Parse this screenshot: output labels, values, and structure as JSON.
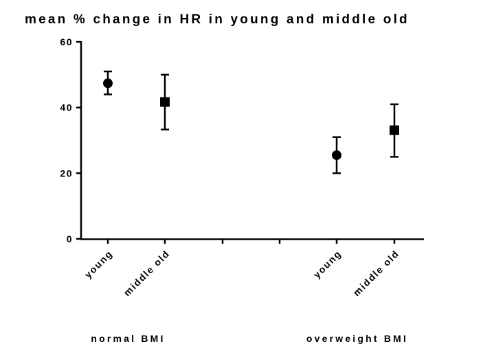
{
  "chart_data": {
    "type": "scatter",
    "title": "mean % change in HR in young and middle old",
    "xlabel": "",
    "ylabel": "",
    "ylim": [
      0,
      60
    ],
    "yticks": [
      0,
      20,
      40,
      60
    ],
    "grid": false,
    "categories": [
      "young",
      "middle old",
      "",
      "",
      "young",
      "middle old"
    ],
    "groups": [
      {
        "label": "normal BMI",
        "categories": [
          "young",
          "middle old"
        ]
      },
      {
        "label": "overweight BMI",
        "categories": [
          "young",
          "middle old"
        ]
      }
    ],
    "points": [
      {
        "group": "normal BMI",
        "category": "young",
        "marker": "circle",
        "mean": 47.4,
        "low": 44.0,
        "high": 51.0
      },
      {
        "group": "normal BMI",
        "category": "middle old",
        "marker": "square",
        "mean": 41.7,
        "low": 33.3,
        "high": 50.0
      },
      {
        "group": "overweight BMI",
        "category": "young",
        "marker": "circle",
        "mean": 25.5,
        "low": 20.0,
        "high": 31.0
      },
      {
        "group": "overweight BMI",
        "category": "middle old",
        "marker": "square",
        "mean": 33.1,
        "low": 25.0,
        "high": 41.0
      }
    ],
    "colors": {
      "ink": "#000000",
      "background": "#ffffff"
    }
  }
}
